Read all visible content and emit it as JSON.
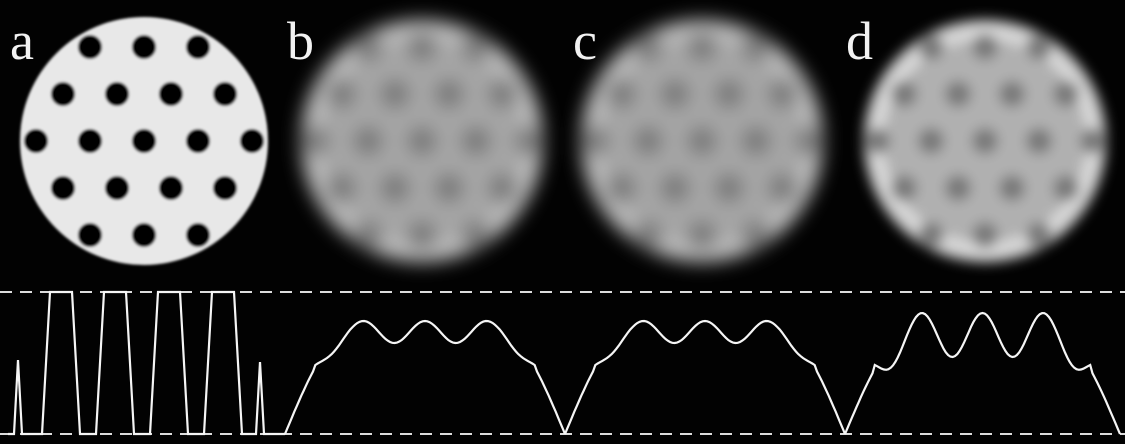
{
  "panels": [
    {
      "label": "a",
      "style": "sharp"
    },
    {
      "label": "b",
      "style": "blur"
    },
    {
      "label": "c",
      "style": "blur"
    },
    {
      "label": "d",
      "style": "enhanced"
    }
  ],
  "colors": {
    "background": "#020202",
    "disk_sharp": "#e8e8e8",
    "hole_sharp": "#050505",
    "disk_blur": "#a6a6a6",
    "hole_blur": "#7a7a7a",
    "profile_line": "#f5f5f5",
    "reference_dash": "#dcdcdc"
  },
  "hole_grid": {
    "rows": [
      3,
      4,
      5,
      4,
      3
    ],
    "description_note": ""
  }
}
